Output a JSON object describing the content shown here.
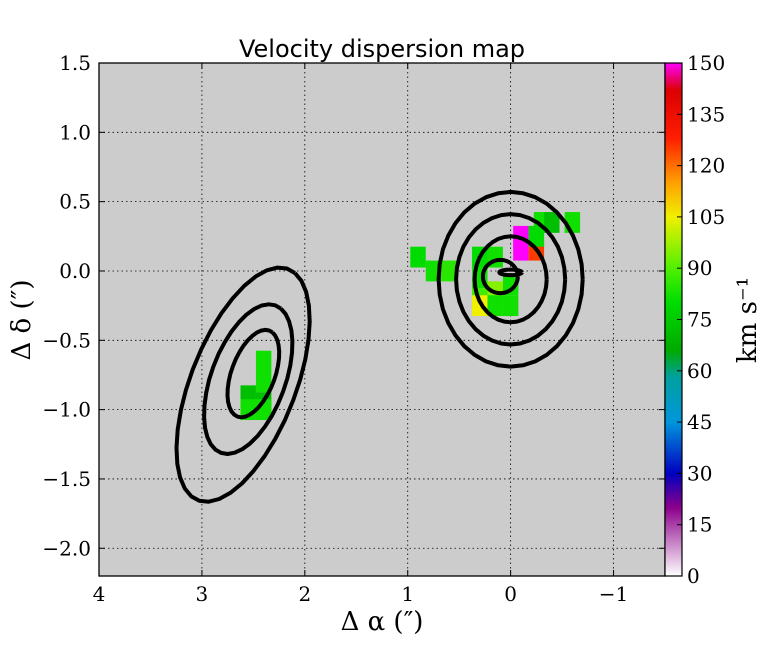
{
  "chart_data": {
    "type": "heatmap",
    "title": "Velocity dispersion map",
    "xlabel": "Δ α  (″)",
    "ylabel": "Δ δ  (″)",
    "xlim": [
      4,
      -1.5
    ],
    "ylim": [
      -2.2,
      1.5
    ],
    "x_ticks": [
      4,
      3,
      2,
      1,
      0,
      -1
    ],
    "x_tick_labels": [
      "4",
      "3",
      "2",
      "1",
      "0",
      "−1"
    ],
    "y_ticks": [
      1.5,
      1.0,
      0.5,
      0.0,
      -0.5,
      -1.0,
      -1.5,
      -2.0
    ],
    "y_tick_labels": [
      "1.5",
      "1.0",
      "0.5",
      "0.0",
      "−0.5",
      "−1.0",
      "−1.5",
      "−2.0"
    ],
    "grid": true,
    "background_color": "#cccccc",
    "pixel_size_arcsec": 0.15,
    "pixels": [
      {
        "x": 0.9,
        "y": 0.1,
        "v": 80
      },
      {
        "x": 0.3,
        "y": 0.1,
        "v": 80
      },
      {
        "x": 0.15,
        "y": 0.1,
        "v": 82
      },
      {
        "x": 0.75,
        "y": 0.0,
        "v": 82
      },
      {
        "x": 0.6,
        "y": 0.0,
        "v": 85
      },
      {
        "x": 0.3,
        "y": -0.05,
        "v": 82
      },
      {
        "x": 0.15,
        "y": -0.15,
        "v": 95
      },
      {
        "x": 0.3,
        "y": -0.2,
        "v": 88
      },
      {
        "x": 0.3,
        "y": -0.25,
        "v": 105
      },
      {
        "x": 0.15,
        "y": -0.25,
        "v": 82
      },
      {
        "x": 0.0,
        "y": -0.1,
        "v": 82
      },
      {
        "x": 0.0,
        "y": -0.25,
        "v": 82
      },
      {
        "x": -0.3,
        "y": 0.35,
        "v": 82
      },
      {
        "x": -0.4,
        "y": 0.35,
        "v": 72
      },
      {
        "x": -0.6,
        "y": 0.35,
        "v": 82
      },
      {
        "x": -0.1,
        "y": 0.25,
        "v": 150
      },
      {
        "x": -0.1,
        "y": 0.15,
        "v": 150
      },
      {
        "x": -0.25,
        "y": 0.15,
        "v": 125
      },
      {
        "x": -0.25,
        "y": 0.25,
        "v": 80
      },
      {
        "x": 2.4,
        "y": -0.65,
        "v": 82
      },
      {
        "x": 2.4,
        "y": -0.8,
        "v": 82
      },
      {
        "x": 2.4,
        "y": -0.95,
        "v": 72
      },
      {
        "x": 2.55,
        "y": -0.9,
        "v": 72
      },
      {
        "x": 2.55,
        "y": -1.0,
        "v": 82
      },
      {
        "x": 2.4,
        "y": -1.0,
        "v": 82
      }
    ],
    "contours": [
      {
        "cx": 0.0,
        "cy": -0.06,
        "rx": 0.7,
        "ry": 0.63,
        "angle": 0
      },
      {
        "cx": 0.0,
        "cy": -0.06,
        "rx": 0.53,
        "ry": 0.47,
        "angle": 0
      },
      {
        "cx": 0.0,
        "cy": -0.06,
        "rx": 0.35,
        "ry": 0.31,
        "angle": 0
      },
      {
        "cx": 0.1,
        "cy": -0.04,
        "rx": 0.17,
        "ry": 0.12,
        "angle": 0
      },
      {
        "cx": 0.0,
        "cy": -0.01,
        "rx": 0.11,
        "ry": 0.02,
        "angle": 0
      },
      {
        "cx": 2.6,
        "cy": -0.82,
        "rx": 0.95,
        "ry": 0.48,
        "angle": 58
      },
      {
        "cx": 2.55,
        "cy": -0.78,
        "rx": 0.6,
        "ry": 0.34,
        "angle": 58
      },
      {
        "cx": 2.5,
        "cy": -0.74,
        "rx": 0.35,
        "ry": 0.2,
        "angle": 58
      }
    ],
    "colorbar": {
      "label": "km s⁻¹",
      "min": 0,
      "max": 150,
      "ticks": [
        0,
        15,
        30,
        45,
        60,
        75,
        90,
        105,
        120,
        135,
        150
      ],
      "tick_labels": [
        "0",
        "15",
        "30",
        "45",
        "60",
        "75",
        "90",
        "105",
        "120",
        "135",
        "150"
      ],
      "stops": [
        {
          "v": 0,
          "color": "#ffffff"
        },
        {
          "v": 20,
          "color": "#8c008c"
        },
        {
          "v": 30,
          "color": "#0000bf"
        },
        {
          "v": 45,
          "color": "#0096dc"
        },
        {
          "v": 58,
          "color": "#00a0a0"
        },
        {
          "v": 66,
          "color": "#00aa00"
        },
        {
          "v": 80,
          "color": "#00dc00"
        },
        {
          "v": 90,
          "color": "#50f000"
        },
        {
          "v": 105,
          "color": "#f0f000"
        },
        {
          "v": 115,
          "color": "#ffa000"
        },
        {
          "v": 128,
          "color": "#ff1e00"
        },
        {
          "v": 142,
          "color": "#dc0000"
        },
        {
          "v": 150,
          "color": "#ff00ff"
        }
      ]
    }
  }
}
